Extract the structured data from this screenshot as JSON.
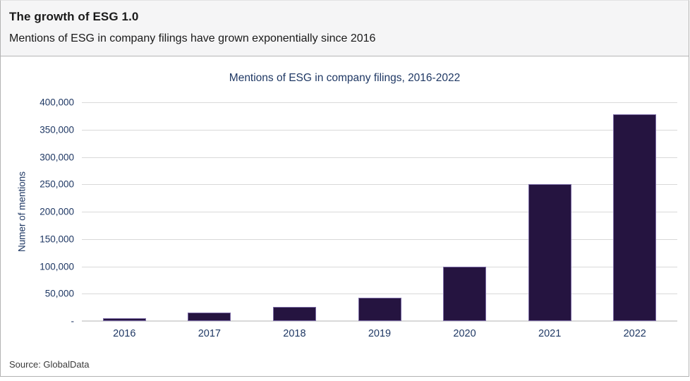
{
  "header": {
    "title": "The growth of ESG 1.0",
    "subtitle": "Mentions of ESG in company filings have grown exponentially since 2016"
  },
  "chart_data": {
    "type": "bar",
    "title": "Mentions of ESG in company filings, 2016-2022",
    "categories": [
      "2016",
      "2017",
      "2018",
      "2019",
      "2020",
      "2021",
      "2022"
    ],
    "values": [
      5000,
      15000,
      26000,
      42000,
      100000,
      250000,
      378000
    ],
    "xlabel": "",
    "ylabel": "Numer of mentions",
    "ylim": [
      0,
      400000
    ],
    "ytick_step": 50000,
    "ytick_labels_top_to_bottom": [
      "400,000",
      "350,000",
      "300,000",
      "250,000",
      "200,000",
      "150,000",
      "100,000",
      "50,000",
      "-"
    ],
    "grid": true,
    "legend": false
  },
  "footer": {
    "source": "Source: GlobalData"
  },
  "colors": {
    "bar_fill": "#251440",
    "bar_border": "#7b6ba5",
    "axis_text": "#1f3864",
    "chart_title_text": "#1f3864",
    "gridline": "#d9d9d9",
    "header_bg": "#f5f5f6",
    "header_text": "#1a1a1a",
    "source_text": "#3a3a3a"
  }
}
